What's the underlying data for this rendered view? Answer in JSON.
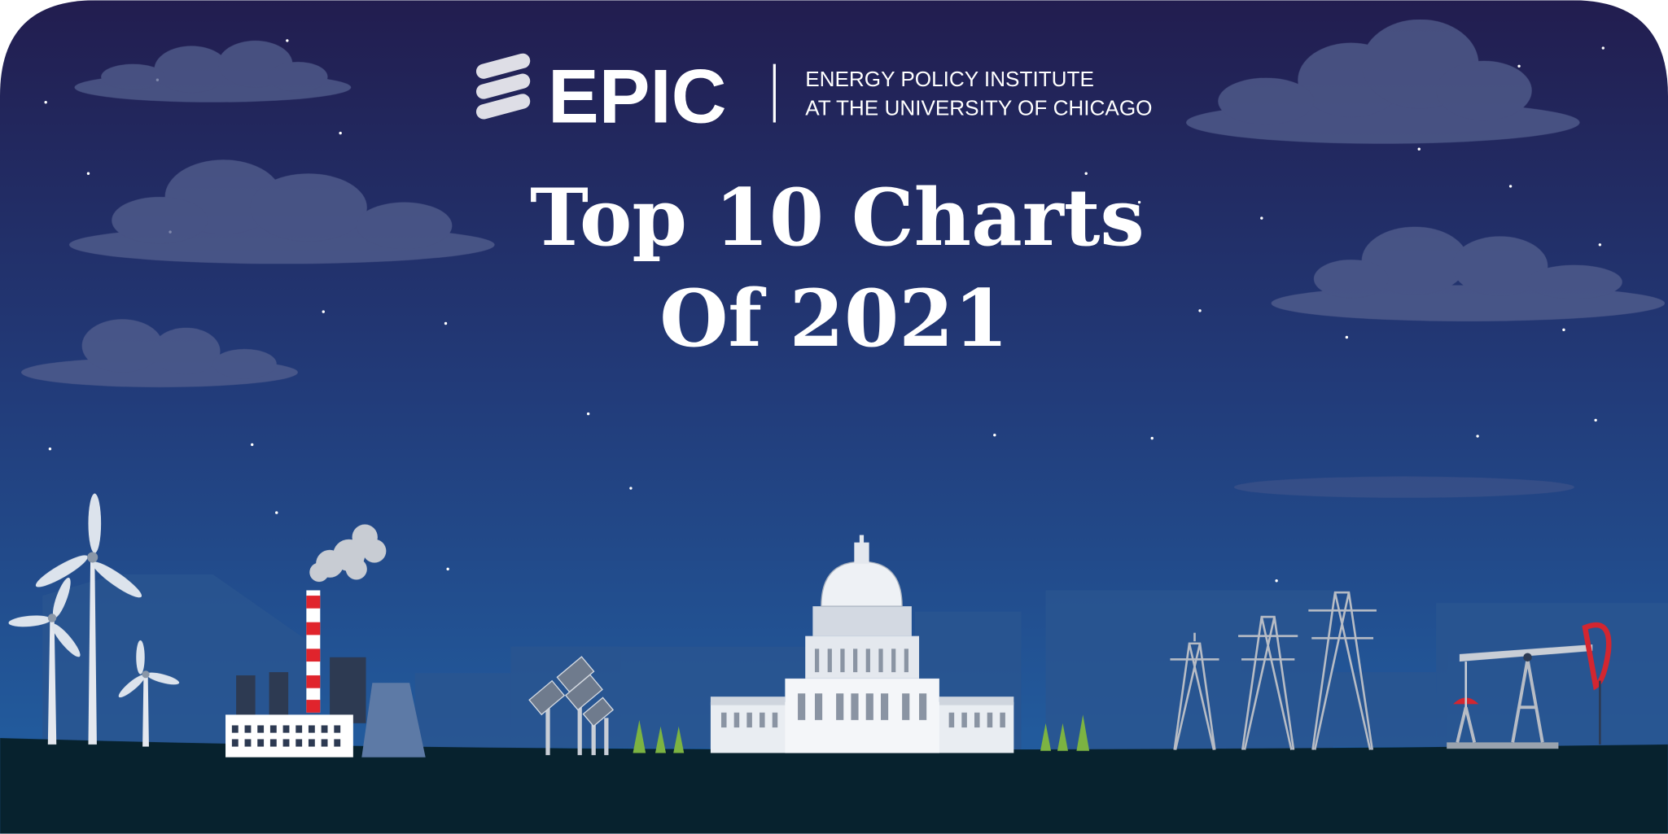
{
  "logo": {
    "name": "EPIC",
    "line1": "ENERGY POLICY INSTITUTE",
    "line2": "AT THE UNIVERSITY OF CHICAGO"
  },
  "title": {
    "line1": "Top 10 Charts",
    "line2": "Of 2021"
  }
}
